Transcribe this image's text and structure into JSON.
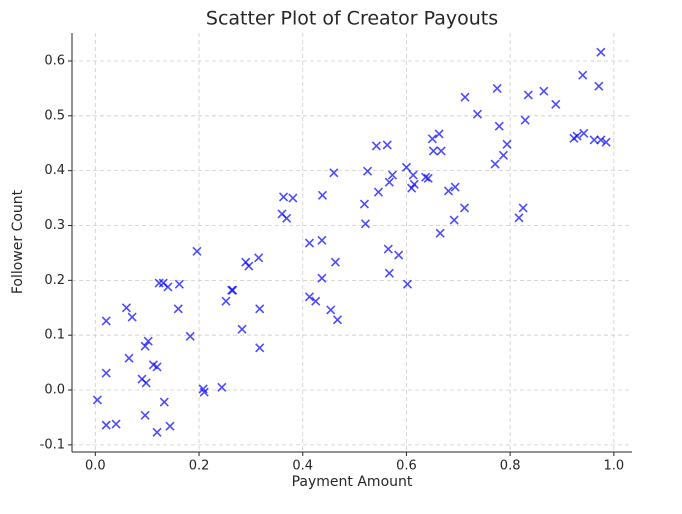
{
  "chart_data": {
    "type": "scatter",
    "title": "Scatter Plot of Creator Payouts",
    "xlabel": "Payment Amount",
    "ylabel": "Follower Count",
    "color": "#0000ff",
    "grid": true,
    "xlim": [
      -0.045,
      1.035
    ],
    "ylim": [
      -0.113,
      0.651
    ],
    "xticks": [
      {
        "value": 0,
        "label": "0.0"
      },
      0.2,
      0.4,
      0.6,
      0.8,
      {
        "value": 1,
        "label": "1.0"
      }
    ],
    "yticks": [
      -0.1,
      {
        "value": 0,
        "label": "0.0"
      },
      0.1,
      0.2,
      0.3,
      0.4,
      0.5,
      0.6
    ],
    "x": [
      0.004,
      0.021,
      0.021,
      0.021,
      0.04,
      0.06,
      0.071,
      0.065,
      0.09,
      0.098,
      0.096,
      0.102,
      0.096,
      0.112,
      0.119,
      0.119,
      0.123,
      0.131,
      0.14,
      0.133,
      0.144,
      0.162,
      0.16,
      0.183,
      0.196,
      0.208,
      0.21,
      0.244,
      0.252,
      0.263,
      0.265,
      0.283,
      0.29,
      0.296,
      0.315,
      0.317,
      0.317,
      0.36,
      0.363,
      0.369,
      0.381,
      0.413,
      0.413,
      0.425,
      0.437,
      0.437,
      0.438,
      0.454,
      0.463,
      0.467,
      0.46,
      0.519,
      0.521,
      0.525,
      0.542,
      0.546,
      0.563,
      0.565,
      0.567,
      0.567,
      0.573,
      0.585,
      0.6,
      0.602,
      0.61,
      0.615,
      0.613,
      0.637,
      0.642,
      0.65,
      0.652,
      0.663,
      0.667,
      0.665,
      0.681,
      0.694,
      0.692,
      0.712,
      0.713,
      0.737,
      0.771,
      0.775,
      0.779,
      0.787,
      0.794,
      0.817,
      0.825,
      0.829,
      0.835,
      0.865,
      0.888,
      0.923,
      0.929,
      0.94,
      0.942,
      0.962,
      0.971,
      0.975,
      0.975,
      0.985
    ],
    "values": [
      -0.018,
      0.126,
      0.031,
      -0.064,
      -0.062,
      0.15,
      0.133,
      0.058,
      0.02,
      0.013,
      0.08,
      0.089,
      -0.046,
      0.046,
      0.042,
      -0.077,
      0.195,
      0.195,
      0.188,
      -0.022,
      -0.066,
      0.193,
      0.148,
      0.098,
      0.253,
      0.002,
      -0.004,
      0.005,
      0.162,
      0.182,
      0.182,
      0.111,
      0.233,
      0.226,
      0.241,
      0.148,
      0.077,
      0.321,
      0.352,
      0.313,
      0.35,
      0.268,
      0.17,
      0.162,
      0.273,
      0.204,
      0.355,
      0.146,
      0.233,
      0.128,
      0.396,
      0.339,
      0.303,
      0.399,
      0.445,
      0.361,
      0.447,
      0.257,
      0.213,
      0.379,
      0.392,
      0.246,
      0.406,
      0.193,
      0.368,
      0.375,
      0.392,
      0.388,
      0.386,
      0.458,
      0.436,
      0.467,
      0.436,
      0.286,
      0.363,
      0.37,
      0.31,
      0.332,
      0.534,
      0.503,
      0.412,
      0.55,
      0.481,
      0.428,
      0.448,
      0.314,
      0.332,
      0.492,
      0.538,
      0.545,
      0.521,
      0.459,
      0.463,
      0.574,
      0.468,
      0.456,
      0.554,
      0.616,
      0.456,
      0.452
    ]
  }
}
